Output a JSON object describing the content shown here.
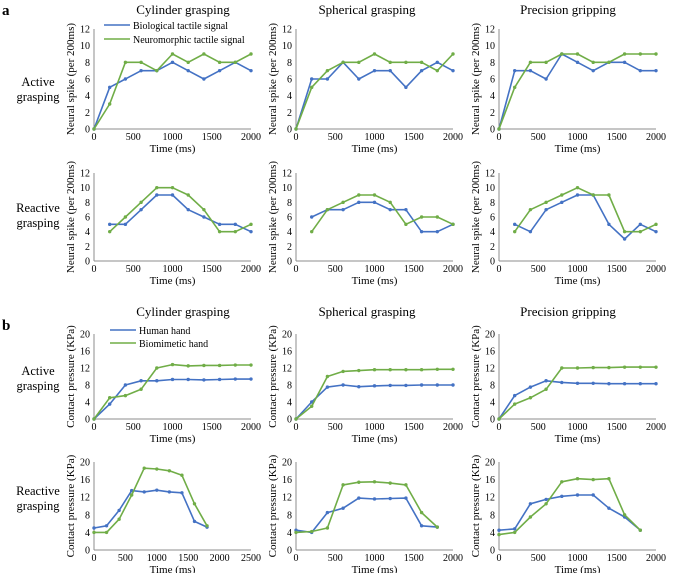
{
  "panel_labels": [
    "a",
    "b"
  ],
  "column_titles": [
    "Cylinder grasping",
    "Spherical grasping",
    "Precision gripping"
  ],
  "row_labels": [
    [
      "Active",
      "grasping"
    ],
    [
      "Reactive",
      "grasping"
    ]
  ],
  "colors": {
    "series_1": "#4472C4",
    "series_2": "#70AD47",
    "axis": "#8c8c8c"
  },
  "legends": {
    "a": [
      "Biological tactile signal",
      "Neuromorphic tactile signal"
    ],
    "b": [
      "Human hand",
      "Biomimetic hand"
    ]
  },
  "chart_data": [
    {
      "panel": "a",
      "title": "Cylinder grasping",
      "row": "Active grasping",
      "type": "line",
      "xlabel": "Time (ms)",
      "ylabel": "Neural spike (per 200ms)",
      "xlim": [
        0,
        2000
      ],
      "xticks": [
        0,
        500,
        1000,
        1500,
        2000
      ],
      "ylim": [
        0,
        12
      ],
      "yticks": [
        0,
        2,
        4,
        6,
        8,
        10,
        12
      ],
      "series": [
        {
          "name": "Biological tactile signal",
          "x": [
            0,
            200,
            400,
            600,
            800,
            1000,
            1200,
            1400,
            1600,
            1800,
            2000
          ],
          "y": [
            0,
            5,
            6,
            7,
            7,
            8,
            7,
            6,
            7,
            8,
            7
          ]
        },
        {
          "name": "Neuromorphic tactile signal",
          "x": [
            0,
            200,
            400,
            600,
            800,
            1000,
            1200,
            1400,
            1600,
            1800,
            2000
          ],
          "y": [
            0,
            3,
            8,
            8,
            7,
            9,
            8,
            9,
            8,
            8,
            9
          ]
        }
      ]
    },
    {
      "panel": "a",
      "title": "Spherical grasping",
      "row": "Active grasping",
      "type": "line",
      "xlabel": "Time (ms)",
      "ylabel": "Neural spike (per 200ms)",
      "xlim": [
        0,
        2000
      ],
      "xticks": [
        0,
        500,
        1000,
        1500,
        2000
      ],
      "ylim": [
        0,
        12
      ],
      "yticks": [
        0,
        2,
        4,
        6,
        8,
        10,
        12
      ],
      "series": [
        {
          "name": "Biological tactile signal",
          "x": [
            0,
            200,
            400,
            600,
            800,
            1000,
            1200,
            1400,
            1600,
            1800,
            2000
          ],
          "y": [
            0,
            6,
            6,
            8,
            6,
            7,
            7,
            5,
            7,
            8,
            7
          ]
        },
        {
          "name": "Neuromorphic tactile signal",
          "x": [
            0,
            200,
            400,
            600,
            800,
            1000,
            1200,
            1400,
            1600,
            1800,
            2000
          ],
          "y": [
            0,
            5,
            7,
            8,
            8,
            9,
            8,
            8,
            8,
            7,
            9
          ]
        }
      ]
    },
    {
      "panel": "a",
      "title": "Precision gripping",
      "row": "Active grasping",
      "type": "line",
      "xlabel": "Time (ms)",
      "ylabel": "Neural spike (per 200ms)",
      "xlim": [
        0,
        2000
      ],
      "xticks": [
        0,
        500,
        1000,
        1500,
        2000
      ],
      "ylim": [
        0,
        12
      ],
      "yticks": [
        0,
        2,
        4,
        6,
        8,
        10,
        12
      ],
      "series": [
        {
          "name": "Biological tactile signal",
          "x": [
            0,
            200,
            400,
            600,
            800,
            1000,
            1200,
            1400,
            1600,
            1800,
            2000
          ],
          "y": [
            0,
            7,
            7,
            6,
            9,
            8,
            7,
            8,
            8,
            7,
            7
          ]
        },
        {
          "name": "Neuromorphic tactile signal",
          "x": [
            0,
            200,
            400,
            600,
            800,
            1000,
            1200,
            1400,
            1600,
            1800,
            2000
          ],
          "y": [
            0,
            5,
            8,
            8,
            9,
            9,
            8,
            8,
            9,
            9,
            9
          ]
        }
      ]
    },
    {
      "panel": "a",
      "title": "Cylinder grasping",
      "row": "Reactive grasping",
      "type": "line",
      "xlabel": "Time (ms)",
      "ylabel": "Neural spike (per 200ms)",
      "xlim": [
        0,
        2000
      ],
      "xticks": [
        0,
        500,
        1000,
        1500,
        2000
      ],
      "ylim": [
        0,
        12
      ],
      "yticks": [
        0,
        2,
        4,
        6,
        8,
        10,
        12
      ],
      "series": [
        {
          "name": "Biological tactile signal",
          "x": [
            200,
            400,
            600,
            800,
            1000,
            1200,
            1400,
            1600,
            1800,
            2000
          ],
          "y": [
            5,
            5,
            7,
            9,
            9,
            7,
            6,
            5,
            5,
            4
          ]
        },
        {
          "name": "Neuromorphic tactile signal",
          "x": [
            200,
            400,
            600,
            800,
            1000,
            1200,
            1400,
            1600,
            1800,
            2000
          ],
          "y": [
            4,
            6,
            8,
            10,
            10,
            9,
            7,
            4,
            4,
            5
          ]
        }
      ]
    },
    {
      "panel": "a",
      "title": "Spherical grasping",
      "row": "Reactive grasping",
      "type": "line",
      "xlabel": "Time (ms)",
      "ylabel": "Neural spike (per 200ms)",
      "xlim": [
        0,
        2000
      ],
      "xticks": [
        0,
        500,
        1000,
        1500,
        2000
      ],
      "ylim": [
        0,
        12
      ],
      "yticks": [
        0,
        2,
        4,
        6,
        8,
        10,
        12
      ],
      "series": [
        {
          "name": "Biological tactile signal",
          "x": [
            200,
            400,
            600,
            800,
            1000,
            1200,
            1400,
            1600,
            1800,
            2000
          ],
          "y": [
            6,
            7,
            7,
            8,
            8,
            7,
            7,
            4,
            4,
            5
          ]
        },
        {
          "name": "Neuromorphic tactile signal",
          "x": [
            200,
            400,
            600,
            800,
            1000,
            1200,
            1400,
            1600,
            1800,
            2000
          ],
          "y": [
            4,
            7,
            8,
            9,
            9,
            8,
            5,
            6,
            6,
            5
          ]
        }
      ]
    },
    {
      "panel": "a",
      "title": "Precision gripping",
      "row": "Reactive grasping",
      "type": "line",
      "xlabel": "Time (ms)",
      "ylabel": "Neural spike (per 200ms)",
      "xlim": [
        0,
        2000
      ],
      "xticks": [
        0,
        500,
        1000,
        1500,
        2000
      ],
      "ylim": [
        0,
        12
      ],
      "yticks": [
        0,
        2,
        4,
        6,
        8,
        10,
        12
      ],
      "series": [
        {
          "name": "Biological tactile signal",
          "x": [
            200,
            400,
            600,
            800,
            1000,
            1200,
            1400,
            1600,
            1800,
            2000
          ],
          "y": [
            5,
            4,
            7,
            8,
            9,
            9,
            5,
            3,
            5,
            4
          ]
        },
        {
          "name": "Neuromorphic tactile signal",
          "x": [
            200,
            400,
            600,
            800,
            1000,
            1200,
            1400,
            1600,
            1800,
            2000
          ],
          "y": [
            4,
            7,
            8,
            9,
            10,
            9,
            9,
            4,
            4,
            5
          ]
        }
      ]
    },
    {
      "panel": "b",
      "title": "Cylinder grasping",
      "row": "Active grasping",
      "type": "line",
      "xlabel": "Time (ms)",
      "ylabel": "Contact pressure (KPa)",
      "xlim": [
        0,
        2000
      ],
      "xticks": [
        0,
        500,
        1000,
        1500,
        2000
      ],
      "ylim": [
        0,
        20
      ],
      "yticks": [
        0,
        4,
        8,
        12,
        16,
        20
      ],
      "series": [
        {
          "name": "Human hand",
          "x": [
            0,
            200,
            400,
            600,
            800,
            1000,
            1200,
            1400,
            1600,
            1800,
            2000
          ],
          "y": [
            0,
            3.5,
            8,
            9,
            9,
            9.3,
            9.3,
            9.2,
            9.3,
            9.4,
            9.4
          ]
        },
        {
          "name": "Biomimetic hand",
          "x": [
            0,
            200,
            400,
            600,
            800,
            1000,
            1200,
            1400,
            1600,
            1800,
            2000
          ],
          "y": [
            0,
            5,
            5.5,
            7,
            12,
            12.8,
            12.5,
            12.6,
            12.6,
            12.7,
            12.7
          ]
        }
      ]
    },
    {
      "panel": "b",
      "title": "Spherical grasping",
      "row": "Active grasping",
      "type": "line",
      "xlabel": "Time (ms)",
      "ylabel": "Contact pressure (KPa)",
      "xlim": [
        0,
        2000
      ],
      "xticks": [
        0,
        500,
        1000,
        1500,
        2000
      ],
      "ylim": [
        0,
        20
      ],
      "yticks": [
        0,
        4,
        8,
        12,
        16,
        20
      ],
      "series": [
        {
          "name": "Human hand",
          "x": [
            0,
            200,
            400,
            600,
            800,
            1000,
            1200,
            1400,
            1600,
            1800,
            2000
          ],
          "y": [
            0,
            4,
            7.5,
            8,
            7.6,
            7.8,
            7.9,
            7.9,
            8,
            8,
            8
          ]
        },
        {
          "name": "Biomimetic hand",
          "x": [
            0,
            200,
            400,
            600,
            800,
            1000,
            1200,
            1400,
            1600,
            1800,
            2000
          ],
          "y": [
            0,
            3,
            10,
            11.2,
            11.4,
            11.6,
            11.6,
            11.6,
            11.6,
            11.7,
            11.7
          ]
        }
      ]
    },
    {
      "panel": "b",
      "title": "Precision gripping",
      "row": "Active grasping",
      "type": "line",
      "xlabel": "Time (ms)",
      "ylabel": "Contact pressure (KPa)",
      "xlim": [
        0,
        2000
      ],
      "xticks": [
        0,
        500,
        1000,
        1500,
        2000
      ],
      "ylim": [
        0,
        20
      ],
      "yticks": [
        0,
        4,
        8,
        12,
        16,
        20
      ],
      "series": [
        {
          "name": "Human hand",
          "x": [
            0,
            200,
            400,
            600,
            800,
            1000,
            1200,
            1400,
            1600,
            1800,
            2000
          ],
          "y": [
            0,
            5.5,
            7.5,
            9,
            8.6,
            8.4,
            8.4,
            8.3,
            8.3,
            8.3,
            8.3
          ]
        },
        {
          "name": "Biomimetic hand",
          "x": [
            0,
            200,
            400,
            600,
            800,
            1000,
            1200,
            1400,
            1600,
            1800,
            2000
          ],
          "y": [
            0,
            3.5,
            5,
            7,
            12,
            12,
            12.1,
            12.1,
            12.2,
            12.2,
            12.2
          ]
        }
      ]
    },
    {
      "panel": "b",
      "title": "Cylinder grasping",
      "row": "Reactive grasping",
      "type": "line",
      "xlabel": "Time (ms)",
      "ylabel": "Contact pressure (KPa)",
      "xlim": [
        0,
        2500
      ],
      "xticks": [
        0,
        500,
        1000,
        1500,
        2000,
        2500
      ],
      "ylim": [
        0,
        20
      ],
      "yticks": [
        0,
        4,
        8,
        12,
        16,
        20
      ],
      "series": [
        {
          "name": "Human hand",
          "x": [
            0,
            200,
            400,
            600,
            800,
            1000,
            1200,
            1400,
            1600,
            1800
          ],
          "y": [
            5,
            5.5,
            9,
            13.5,
            13.2,
            13.6,
            13.2,
            13,
            6.5,
            5.2
          ]
        },
        {
          "name": "Biomimetic hand",
          "x": [
            0,
            200,
            400,
            600,
            800,
            1000,
            1200,
            1400,
            1600,
            1800
          ],
          "y": [
            4,
            4,
            7,
            12.5,
            18.6,
            18.4,
            18,
            17,
            10.5,
            5.5
          ]
        }
      ]
    },
    {
      "panel": "b",
      "title": "Spherical grasping",
      "row": "Reactive grasping",
      "type": "line",
      "xlabel": "Time (ms)",
      "ylabel": "Contact pressure (KPa)",
      "xlim": [
        0,
        2000
      ],
      "xticks": [
        0,
        500,
        1000,
        1500,
        2000
      ],
      "ylim": [
        0,
        20
      ],
      "yticks": [
        0,
        4,
        8,
        12,
        16,
        20
      ],
      "series": [
        {
          "name": "Human hand",
          "x": [
            0,
            200,
            400,
            600,
            800,
            1000,
            1200,
            1400,
            1600,
            1800
          ],
          "y": [
            4.5,
            4,
            8.5,
            9.5,
            11.8,
            11.6,
            11.7,
            11.8,
            5.5,
            5.2
          ]
        },
        {
          "name": "Biomimetic hand",
          "x": [
            0,
            200,
            400,
            600,
            800,
            1000,
            1200,
            1400,
            1600,
            1800
          ],
          "y": [
            4,
            4.2,
            5,
            14.8,
            15.4,
            15.5,
            15.2,
            14.8,
            8.5,
            5.2
          ]
        }
      ]
    },
    {
      "panel": "b",
      "title": "Precision gripping",
      "row": "Reactive grasping",
      "type": "line",
      "xlabel": "Time (ms)",
      "ylabel": "Contact pressure (KPa)",
      "xlim": [
        0,
        2000
      ],
      "xticks": [
        0,
        500,
        1000,
        1500,
        2000
      ],
      "ylim": [
        0,
        20
      ],
      "yticks": [
        0,
        4,
        8,
        12,
        16,
        20
      ],
      "series": [
        {
          "name": "Human hand",
          "x": [
            0,
            200,
            400,
            600,
            800,
            1000,
            1200,
            1400,
            1600,
            1800
          ],
          "y": [
            4.5,
            4.8,
            10.5,
            11.5,
            12.2,
            12.5,
            12.5,
            9.5,
            7.5,
            4.5
          ]
        },
        {
          "name": "Biomimetic hand",
          "x": [
            0,
            200,
            400,
            600,
            800,
            1000,
            1200,
            1400,
            1600,
            1800
          ],
          "y": [
            3.5,
            4,
            7.5,
            10.5,
            15.5,
            16.2,
            16,
            16.2,
            8,
            4.5
          ]
        }
      ]
    }
  ]
}
